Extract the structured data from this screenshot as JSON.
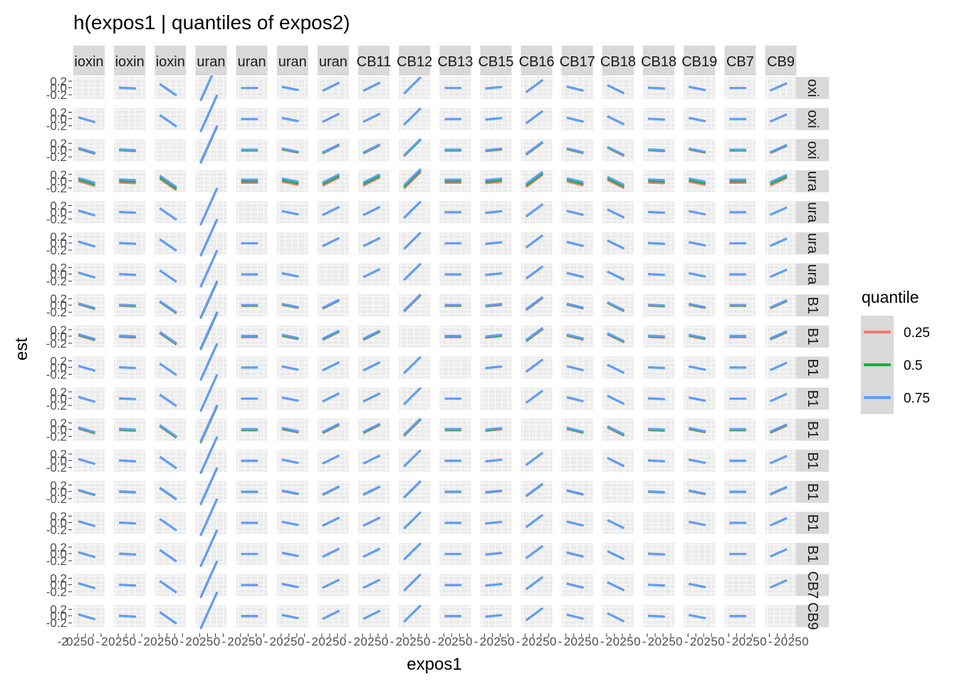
{
  "chart_data": {
    "type": "line",
    "title": "h(expos1 | quantiles of expos2)",
    "xlabel": "expos1",
    "ylabel": "est",
    "y_tick_labels": [
      "0.2",
      "0.0",
      "-0.2"
    ],
    "x_tick_labels": [
      "-2",
      "0",
      "2",
      "5",
      "0",
      "-",
      "2",
      "0",
      "2",
      "5",
      "0",
      "-",
      "2",
      "0",
      "2",
      "5",
      "0",
      "-",
      "2",
      "0",
      "2",
      "5",
      "0",
      "-",
      "2",
      "0",
      "2",
      "5",
      "0",
      "-",
      "2",
      "0",
      "2",
      "5",
      "0",
      "-",
      "2",
      "0",
      "2",
      "5",
      "0",
      "-",
      "2",
      "0",
      "2",
      "5",
      "0",
      "-",
      "2",
      "0",
      "2",
      "5",
      "0",
      "-",
      "2",
      "0",
      "2",
      "5",
      "0",
      "-",
      "2",
      "0",
      "2",
      "5",
      "0",
      "-",
      "2",
      "0",
      "2",
      "5",
      "0",
      "-",
      "2",
      "0",
      "2",
      "5",
      "0",
      "-",
      "2",
      "0",
      "2",
      "5",
      "0",
      "-",
      "2",
      "0",
      "2",
      "5",
      "0",
      "-",
      "2",
      "0",
      "2",
      "5",
      "0",
      "-",
      "2",
      "0",
      "2",
      "5",
      "0",
      "-",
      "2",
      "0",
      "2",
      "5",
      "0"
    ],
    "column_strips": [
      "ioxin",
      "ioxin",
      "ioxin",
      "uran",
      "uran",
      "uran",
      "uran",
      "CB11",
      "CB12",
      "CB13",
      "CB15",
      "CB16",
      "CB17",
      "CB18",
      "CB18",
      "CB19",
      "CB7",
      "CB9"
    ],
    "row_strips": [
      "oxi",
      "oxi",
      "oxi",
      "ura",
      "ura",
      "ura",
      "ura",
      "B1",
      "B1",
      "B1",
      "B1",
      "B1",
      "B1",
      "B1",
      "B1",
      "B1",
      "CB7",
      "CB9"
    ],
    "column_slopes": [
      -0.06,
      -0.01,
      -0.14,
      0.45,
      0,
      -0.04,
      0.1,
      0.1,
      0.2,
      0,
      0.02,
      0.15,
      -0.05,
      -0.1,
      -0.01,
      -0.04,
      0,
      0.09
    ],
    "row_spreads": [
      0,
      0,
      0.015,
      0.05,
      0,
      0,
      0,
      0.015,
      0.02,
      0,
      0,
      0.02,
      0,
      0.008,
      0,
      0,
      0,
      0
    ],
    "empty_cells": [
      [
        0,
        0
      ],
      [
        1,
        1
      ],
      [
        2,
        2
      ],
      [
        3,
        3
      ],
      [
        4,
        4
      ],
      [
        5,
        5
      ],
      [
        6,
        6
      ],
      [
        7,
        7
      ],
      [
        8,
        8
      ],
      [
        9,
        9
      ],
      [
        10,
        10
      ],
      [
        11,
        11
      ],
      [
        12,
        12
      ],
      [
        13,
        13
      ],
      [
        14,
        14
      ],
      [
        15,
        15
      ],
      [
        16,
        16
      ],
      [
        17,
        17
      ]
    ],
    "ylim": [
      -0.35,
      0.35
    ],
    "xlim": [
      -2.5,
      5.5
    ],
    "grid": true,
    "series": [
      {
        "name": "0.25",
        "color": "#F8766D"
      },
      {
        "name": "0.5",
        "color": "#00BA38"
      },
      {
        "name": "0.75",
        "color": "#619CFF"
      }
    ],
    "legend": {
      "title": "quantile",
      "position": "right"
    }
  }
}
